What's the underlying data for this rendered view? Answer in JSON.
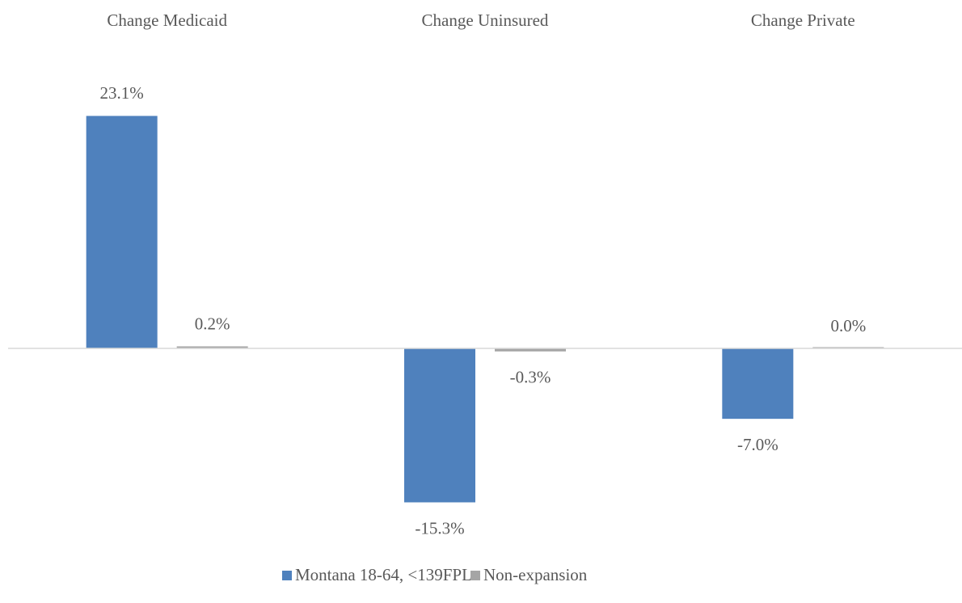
{
  "chart_data": {
    "type": "bar",
    "categories": [
      "Change Medicaid",
      "Change Uninsured",
      "Change Private"
    ],
    "series": [
      {
        "name": "Montana 18-64, <139FPL",
        "color": "#4f81bd",
        "values": [
          23.1,
          -15.3,
          -7.0
        ],
        "value_labels": [
          "23.1%",
          "-15.3%",
          "-7.0%"
        ]
      },
      {
        "name": "Non-expansion",
        "color": "#a5a5a5",
        "values": [
          0.2,
          -0.3,
          0.0
        ],
        "value_labels": [
          "0.2%",
          "-0.3%",
          "0.0%"
        ]
      }
    ],
    "legend": "bottom"
  }
}
